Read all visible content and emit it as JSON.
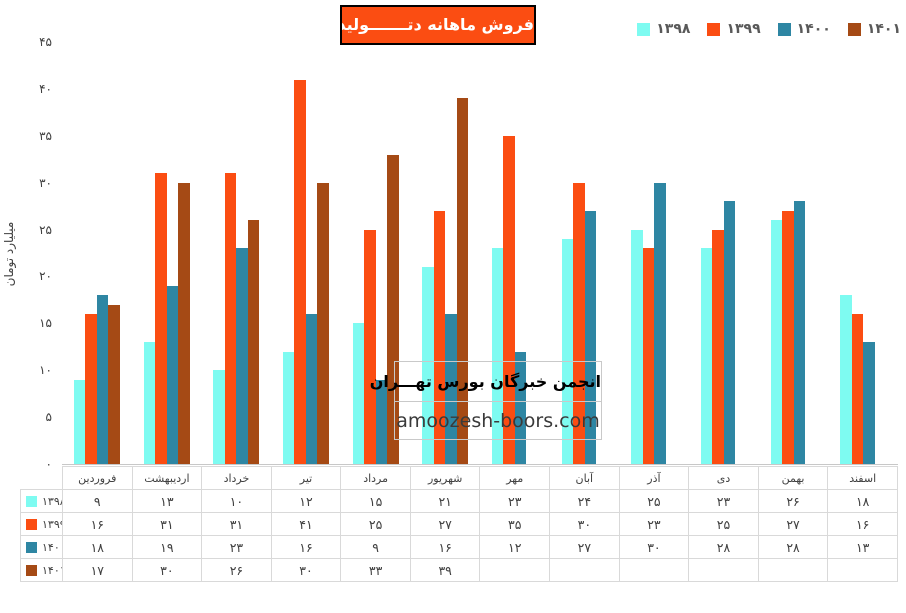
{
  "title": {
    "text": "فروش ماهانه دتـــــــولید",
    "bg_color": "#FB4D12",
    "border_color": "#000000",
    "text_color": "#FFFFFF"
  },
  "watermark": {
    "line1": "انجمن خبرگان بورس تهـــران",
    "line2": "amoozesh-boors.com"
  },
  "colors": {
    "axis_line": "#C8C8C8",
    "table_border": "#D9D9D9",
    "axis_text": "#404040",
    "legend_text": "#595959",
    "watermark_border": "#C9C9C9"
  },
  "chart_data": {
    "type": "bar",
    "title": "فروش ماهانه دتـــــــولید",
    "xlabel": "",
    "ylabel": "میلیارد تومان",
    "ylim": [
      0,
      45
    ],
    "ytick_step": 5,
    "grid": false,
    "legend_position": "top-right",
    "categories": [
      "فروردین",
      "اردیبهشت",
      "خرداد",
      "تیر",
      "مرداد",
      "شهریور",
      "مهر",
      "آبان",
      "آذر",
      "دی",
      "بهمن",
      "اسفند"
    ],
    "series": [
      {
        "name": "1398",
        "label_fa": "۱۳۹۸",
        "color": "#7EFBF1",
        "values": [
          9,
          13,
          10,
          12,
          15,
          21,
          23,
          24,
          25,
          23,
          26,
          18
        ]
      },
      {
        "name": "1399",
        "label_fa": "۱۳۹۹",
        "color": "#FB4D12",
        "values": [
          16,
          31,
          31,
          41,
          25,
          27,
          35,
          30,
          23,
          25,
          27,
          16
        ]
      },
      {
        "name": "1400",
        "label_fa": "۱۴۰۰",
        "color": "#2E86A3",
        "values": [
          18,
          19,
          23,
          16,
          9,
          16,
          12,
          27,
          30,
          28,
          28,
          13
        ]
      },
      {
        "name": "1401",
        "label_fa": "۱۴۰۱",
        "color": "#A54A15",
        "values": [
          17,
          30,
          26,
          30,
          33,
          39,
          null,
          null,
          null,
          null,
          null,
          null
        ]
      }
    ]
  }
}
